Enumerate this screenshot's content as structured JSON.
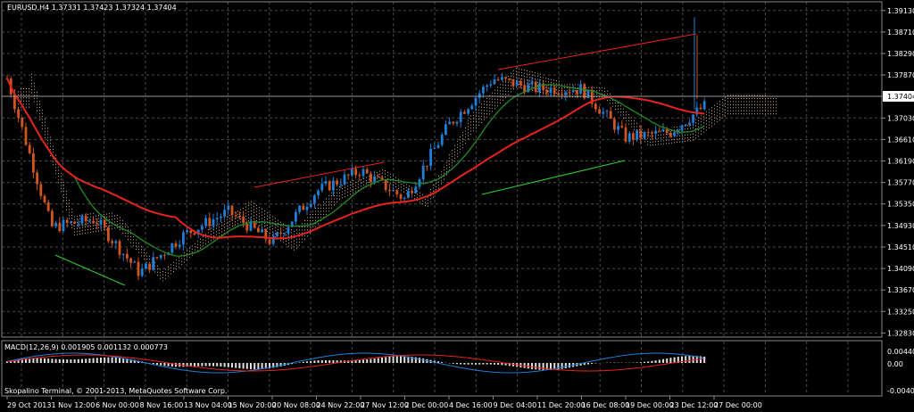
{
  "header": {
    "symbol_line": "EURUSD,H4  1.37331 1.37423 1.37324 1.37404"
  },
  "current_price": "1.37404",
  "price_axis_ticks": [
    "1.39130",
    "1.38710",
    "1.38290",
    "1.37870",
    "1.37030",
    "1.36610",
    "1.36190",
    "1.35770",
    "1.35350",
    "1.34930",
    "1.34510",
    "1.34090",
    "1.33670",
    "1.33250",
    "1.32830"
  ],
  "time_axis_ticks": [
    "29 Oct 2013",
    "1 Nov 12:00",
    "6 Nov 00:00",
    "8 Nov 16:00",
    "13 Nov 04:00",
    "15 Nov 20:00",
    "20 Nov 08:00",
    "24 Nov 22:00",
    "27 Nov 12:00",
    "2 Dec 00:00",
    "4 Dec 16:00",
    "9 Dec 04:00",
    "11 Dec 20:00",
    "16 Dec 08:00",
    "19 Dec 00:00",
    "23 Dec 12:00",
    "27 Dec 00:00"
  ],
  "macd": {
    "label": "MACD(12,26,9) 0.001905 0.001132 0.000773",
    "axis_ticks": [
      "0.004403",
      "0.00",
      "-0.004000"
    ]
  },
  "copyright": "Skopalino Terminal, © 2001-2013, MetaQuotes Software Corp.",
  "colors": {
    "background": "#000000",
    "grid": "#4a4a4a",
    "bull": "#1e7fd6",
    "bear": "#d2541e",
    "ma_fast": "#228b22",
    "ma_slow": "#e8231c",
    "cloud": "#c8a88a",
    "trendline": "#e8231c",
    "trendline_green": "#2fd12f"
  },
  "chart_data": {
    "type": "candlestick",
    "symbol": "EURUSD",
    "timeframe": "H4",
    "ohlc_last": {
      "open": 1.37331,
      "high": 1.37423,
      "low": 1.37324,
      "close": 1.37404
    },
    "ylim": [
      1.3275,
      1.393
    ],
    "close_path": [
      {
        "x": "29 Oct 2013",
        "y": 1.378
      },
      {
        "x": "1 Nov 12:00",
        "y": 1.349
      },
      {
        "x": "6 Nov 00:00",
        "y": 1.3505
      },
      {
        "x": "8 Nov 16:00",
        "y": 1.34
      },
      {
        "x": "13 Nov 04:00",
        "y": 1.3475
      },
      {
        "x": "15 Nov 20:00",
        "y": 1.352
      },
      {
        "x": "20 Nov 08:00",
        "y": 1.346
      },
      {
        "x": "24 Nov 22:00",
        "y": 1.356
      },
      {
        "x": "27 Nov 12:00",
        "y": 1.36
      },
      {
        "x": "2 Dec 00:00",
        "y": 1.3545
      },
      {
        "x": "4 Dec 16:00",
        "y": 1.369
      },
      {
        "x": "9 Dec 04:00",
        "y": 1.378
      },
      {
        "x": "11 Dec 20:00",
        "y": 1.376
      },
      {
        "x": "16 Dec 08:00",
        "y": 1.376
      },
      {
        "x": "19 Dec 00:00",
        "y": 1.3665
      },
      {
        "x": "23 Dec 12:00",
        "y": 1.3675
      },
      {
        "x": "27 Dec 00:00",
        "y": 1.374
      }
    ]
  }
}
